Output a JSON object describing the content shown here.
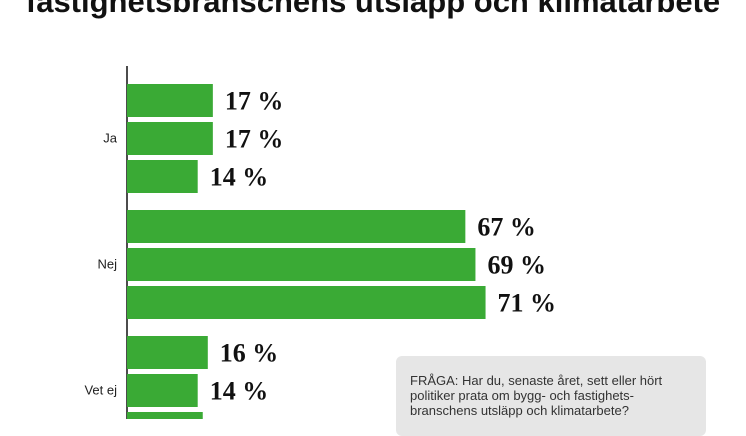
{
  "chart_data": {
    "type": "bar",
    "orientation": "horizontal",
    "title": "fastighetsbranschens utsläpp och klimatarbete",
    "categories": [
      "Ja",
      "Nej",
      "Vet ej"
    ],
    "groups": [
      {
        "category": "Ja",
        "values": [
          17,
          17,
          14
        ],
        "labels": [
          "17 %",
          "17 %",
          "14 %"
        ]
      },
      {
        "category": "Nej",
        "values": [
          67,
          69,
          71
        ],
        "labels": [
          "67 %",
          "69 %",
          "71 %"
        ]
      },
      {
        "category": "Vet ej",
        "values": [
          16,
          14,
          15
        ],
        "labels": [
          "16 %",
          "14 %",
          ""
        ]
      }
    ],
    "bar_color": "#3aaa35",
    "grid": false
  },
  "question": {
    "text": "FRÅGA: Har du, senaste året, sett eller hört politiker prata om bygg- och fastighets-branschens utsläpp och klimatarbete?"
  }
}
